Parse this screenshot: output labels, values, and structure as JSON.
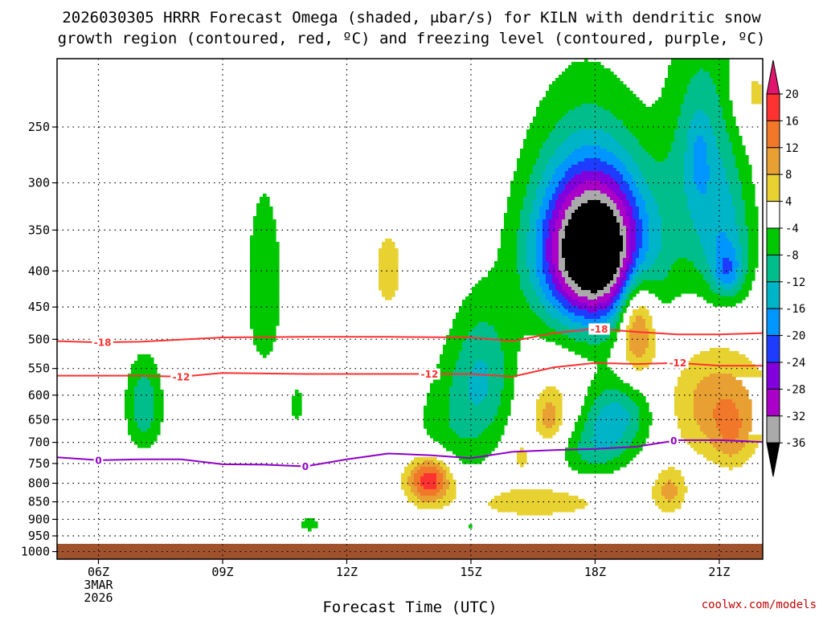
{
  "chart_data": {
    "type": "contour",
    "title_lines": [
      "2026030305 HRRR Forecast Omega (shaded, μbar/s) for KILN with dendritic snow",
      "growth region (contoured, red, ºC) and freezing level (contoured, purple, ºC)"
    ],
    "xlabel": "Forecast Time (UTC)",
    "credit": "coolwx.com/models",
    "x_ticks": [
      {
        "hour": 6,
        "label": "06Z",
        "sub": [
          "3MAR",
          "2026"
        ]
      },
      {
        "hour": 9,
        "label": "09Z",
        "sub": []
      },
      {
        "hour": 12,
        "label": "12Z",
        "sub": []
      },
      {
        "hour": 15,
        "label": "15Z",
        "sub": []
      },
      {
        "hour": 18,
        "label": "18Z",
        "sub": []
      },
      {
        "hour": 21,
        "label": "21Z",
        "sub": []
      }
    ],
    "x_range_hours": [
      5,
      22.05
    ],
    "y_levels_hpa": [
      250,
      300,
      350,
      400,
      450,
      500,
      550,
      600,
      650,
      700,
      750,
      800,
      850,
      900,
      950,
      1000
    ],
    "y_range_hpa": [
      200,
      1025
    ],
    "surface_fill_hpa": 975,
    "surface_color": "#a0522d",
    "colorbar": {
      "labels": [
        "20",
        "16",
        "12",
        "8",
        "4",
        "-4",
        "-8",
        "-12",
        "-16",
        "-20",
        "-24",
        "-28",
        "-32",
        "-36"
      ],
      "colors": [
        "#e0156e",
        "#ff3232",
        "#f07828",
        "#e8a032",
        "#e8d232",
        "#ffffff",
        "#00c800",
        "#00be8c",
        "#00b4c8",
        "#0096ff",
        "#1e3cff",
        "#8200dc",
        "#aa00c8",
        "#aaaaaa",
        "#000000"
      ]
    },
    "contour_levels_omega": [
      -36,
      -32,
      -28,
      -24,
      -20,
      -16,
      -12,
      -8,
      -4,
      4,
      8,
      12,
      16,
      20
    ],
    "omega_cells": [
      {
        "t": 18.0,
        "p": 375,
        "st": 1.3,
        "sp": 95,
        "amp": -44
      },
      {
        "t": 17.6,
        "p": 340,
        "st": 1.5,
        "sp": 150,
        "amp": -6
      },
      {
        "t": 18.5,
        "p": 640,
        "st": 0.9,
        "sp": 75,
        "amp": -13
      },
      {
        "t": 17.9,
        "p": 720,
        "st": 0.9,
        "sp": 70,
        "amp": -9
      },
      {
        "t": 15.3,
        "p": 560,
        "st": 0.8,
        "sp": 130,
        "amp": -11
      },
      {
        "t": 14.5,
        "p": 680,
        "st": 1.0,
        "sp": 150,
        "amp": -6
      },
      {
        "t": 10.0,
        "p": 420,
        "st": 0.45,
        "sp": 130,
        "amp": -8
      },
      {
        "t": 10.8,
        "p": 620,
        "st": 0.25,
        "sp": 60,
        "amp": -5
      },
      {
        "t": 7.1,
        "p": 620,
        "st": 0.45,
        "sp": 95,
        "amp": -11
      },
      {
        "t": 11.1,
        "p": 915,
        "st": 0.3,
        "sp": 25,
        "amp": -6
      },
      {
        "t": 15.0,
        "p": 920,
        "st": 0.15,
        "sp": 15,
        "amp": -5
      },
      {
        "t": 20.6,
        "p": 280,
        "st": 0.9,
        "sp": 110,
        "amp": -12
      },
      {
        "t": 21.2,
        "p": 370,
        "st": 0.7,
        "sp": 80,
        "amp": -10
      },
      {
        "t": 21.2,
        "p": 400,
        "st": 0.35,
        "sp": 30,
        "amp": -10
      },
      {
        "t": 20.5,
        "p": 275,
        "st": 0.25,
        "sp": 35,
        "amp": -5
      },
      {
        "t": 21.8,
        "p": 225,
        "st": 0.5,
        "sp": 30,
        "amp": 6
      },
      {
        "t": 13.0,
        "p": 400,
        "st": 0.35,
        "sp": 55,
        "amp": 7
      },
      {
        "t": 14.0,
        "p": 790,
        "st": 0.55,
        "sp": 60,
        "amp": 21
      },
      {
        "t": 19.0,
        "p": 470,
        "st": 0.45,
        "sp": 80,
        "amp": 19
      },
      {
        "t": 21.0,
        "p": 620,
        "st": 1.2,
        "sp": 110,
        "amp": 11
      },
      {
        "t": 21.3,
        "p": 690,
        "st": 0.45,
        "sp": 70,
        "amp": 6
      },
      {
        "t": 17.0,
        "p": 630,
        "st": 0.8,
        "sp": 100,
        "amp": 6
      },
      {
        "t": 16.9,
        "p": 650,
        "st": 0.25,
        "sp": 40,
        "amp": 7
      },
      {
        "t": 19.8,
        "p": 820,
        "st": 0.4,
        "sp": 60,
        "amp": 9
      },
      {
        "t": 16.5,
        "p": 850,
        "st": 2.2,
        "sp": 55,
        "amp": 6
      },
      {
        "t": 16.2,
        "p": 735,
        "st": 0.25,
        "sp": 50,
        "amp": 5
      }
    ],
    "temperature_contours": [
      {
        "value": -18,
        "label": "-18",
        "color": "#ff3030",
        "t": [
          5,
          6,
          7,
          9,
          11,
          13,
          15,
          16,
          17,
          18,
          19,
          20,
          21,
          22.05
        ],
        "p": [
          503,
          505,
          504,
          497,
          496,
          496,
          497,
          503,
          490,
          483,
          488,
          492,
          492,
          490
        ],
        "label_at": [
          6.1,
          18.1
        ]
      },
      {
        "value": -12,
        "label": "-12",
        "color": "#ff3030",
        "t": [
          5,
          6,
          7,
          8,
          9,
          11,
          13,
          15,
          16,
          17,
          18,
          19,
          20,
          21,
          22.05
        ],
        "p": [
          563,
          563,
          563,
          565,
          558,
          560,
          560,
          560,
          565,
          548,
          540,
          542,
          540,
          545,
          545
        ],
        "label_at": [
          8.0,
          14.0,
          20.0
        ]
      },
      {
        "value": 0,
        "label": "0",
        "color": "#9000c8",
        "t": [
          5,
          6,
          7,
          8,
          9,
          10,
          11,
          12,
          13,
          14,
          15,
          16,
          17,
          18,
          19,
          20,
          21,
          22.05
        ],
        "p": [
          735,
          742,
          740,
          740,
          752,
          753,
          757,
          740,
          726,
          730,
          737,
          722,
          718,
          715,
          710,
          695,
          695,
          699
        ],
        "label_at": [
          6.0,
          11.0,
          19.9
        ]
      }
    ]
  }
}
